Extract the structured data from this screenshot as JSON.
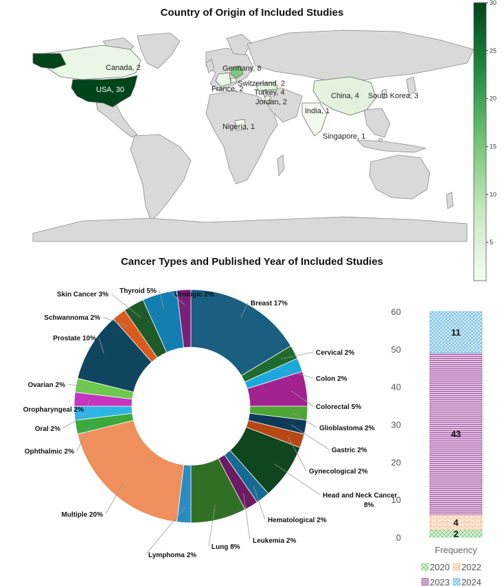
{
  "chart_data": [
    {
      "type": "choropleth-map",
      "title": "Country of Origin of Included Studies",
      "colorbar": {
        "ticks": [
          5,
          10,
          15,
          20,
          25,
          30
        ],
        "range": [
          1,
          30
        ],
        "color_low": "#f7fcf5",
        "color_high": "#00441b"
      },
      "countries": [
        {
          "name": "USA",
          "value": 30,
          "label": "USA, 30"
        },
        {
          "name": "Canada",
          "value": 2,
          "label": "Canada, 2"
        },
        {
          "name": "Germany",
          "value": 8,
          "label": "Germany, 8"
        },
        {
          "name": "Switzerland",
          "value": 2,
          "label": "Switzerland, 2"
        },
        {
          "name": "France",
          "value": 2,
          "label": "France, 2"
        },
        {
          "name": "Turkey",
          "value": 4,
          "label": "Turkey, 4"
        },
        {
          "name": "Jordan",
          "value": 2,
          "label": "Jordan, 2"
        },
        {
          "name": "China",
          "value": 4,
          "label": "China, 4"
        },
        {
          "name": "South Korea",
          "value": 3,
          "label": "South Korea, 3"
        },
        {
          "name": "India",
          "value": 1,
          "label": "India, 1"
        },
        {
          "name": "Nigeria",
          "value": 1,
          "label": "Nigeria, 1"
        },
        {
          "name": "Singapore",
          "value": 1,
          "label": "Singapore, 1"
        }
      ]
    },
    {
      "type": "pie",
      "title": "Cancer Types and Published Year of Included Studies",
      "slices": [
        {
          "label": "Breast  17%",
          "value": 17,
          "color": "#1a5e80"
        },
        {
          "label": "Cervical 2%",
          "value": 2,
          "color": "#1f6b2e"
        },
        {
          "label": "Colon 2%",
          "value": 2,
          "color": "#1ba9dd"
        },
        {
          "label": "Colorectal 5%",
          "value": 5,
          "color": "#a2228f"
        },
        {
          "label": "Glioblastoma  2%",
          "value": 2,
          "color": "#4da635"
        },
        {
          "label": "Gastric  2%",
          "value": 2,
          "color": "#0e3b59"
        },
        {
          "label": "Gynecological 2%",
          "value": 2,
          "color": "#b54815"
        },
        {
          "label": "Head and Neck Cancer 8%",
          "value": 8,
          "color": "#0f451f"
        },
        {
          "label": "Hematological 2%",
          "value": 2,
          "color": "#166b92"
        },
        {
          "label": "Leukemia 2%",
          "value": 2,
          "color": "#6e1b63"
        },
        {
          "label": "Lung 8%",
          "value": 8,
          "color": "#2f7024"
        },
        {
          "label": "Lymphoma  2%",
          "value": 2,
          "color": "#2b8cc4"
        },
        {
          "label": "Multiple 20%",
          "value": 20,
          "color": "#ee8f5c"
        },
        {
          "label": "Ophthalmic 2%",
          "value": 2,
          "color": "#3aaa3f"
        },
        {
          "label": "Oral  2%",
          "value": 2,
          "color": "#2bb6e6"
        },
        {
          "label": "Oropharyngeal  2%",
          "value": 2,
          "color": "#c535c0"
        },
        {
          "label": "Ovarian 2%",
          "value": 2,
          "color": "#6cc94d"
        },
        {
          "label": "Prostate 10%",
          "value": 10,
          "color": "#104560"
        },
        {
          "label": "Schwannoma 2%",
          "value": 2,
          "color": "#d95b1d"
        },
        {
          "label": "Skin Cancer 3%",
          "value": 3,
          "color": "#1e5b29"
        },
        {
          "label": "Thyroid  5%",
          "value": 5,
          "color": "#137fb1"
        },
        {
          "label": "Urologic 2%",
          "value": 2,
          "color": "#7a2079"
        }
      ]
    },
    {
      "type": "bar",
      "stacked": true,
      "categories": [
        "Frequency"
      ],
      "xlabel": "Frequency",
      "ylim": [
        0,
        60
      ],
      "yticks": [
        0,
        10,
        20,
        30,
        40,
        50,
        60
      ],
      "series": [
        {
          "name": "2020",
          "values": [
            2
          ],
          "color": "#7fd07f",
          "pattern": "cross"
        },
        {
          "name": "2022",
          "values": [
            4
          ],
          "color": "#f3a76b",
          "pattern": "brick"
        },
        {
          "name": "2023",
          "values": [
            43
          ],
          "color": "#a35aa3",
          "pattern": "hlines"
        },
        {
          "name": "2024",
          "values": [
            11
          ],
          "color": "#5bb3e6",
          "pattern": "dots"
        }
      ]
    }
  ]
}
